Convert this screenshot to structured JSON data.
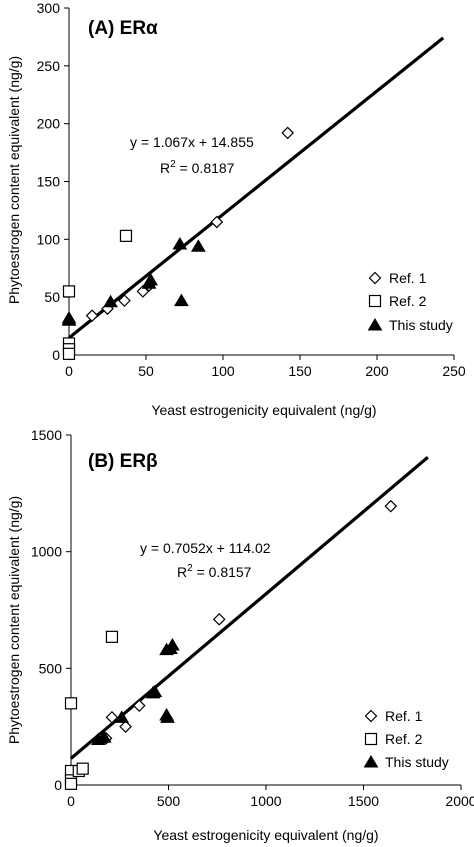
{
  "chart_data": [
    {
      "type": "scatter",
      "title": "(A) ERα",
      "xlabel": "Yeast estrogenicity equivalent (ng/g)",
      "ylabel": "Phytoestrogen content equivalent (ng/g)",
      "xlim": [
        0,
        250
      ],
      "ylim": [
        0,
        300
      ],
      "x_ticks": [
        0,
        50,
        100,
        150,
        200,
        250
      ],
      "y_ticks": [
        0,
        50,
        100,
        150,
        200,
        250,
        300
      ],
      "grid": false,
      "legend_position": "bottom-right",
      "equation": "y = 1.067x + 14.855",
      "r2_prefix": "R",
      "r2_suffix": " = 0.8187",
      "r2_superscript": "2",
      "fit": {
        "slope": 1.067,
        "intercept": 14.855,
        "x_range": [
          0,
          243
        ]
      },
      "series": [
        {
          "name": "Ref. 1",
          "marker": "diamond",
          "points": [
            [
              15,
              34
            ],
            [
              25,
              40
            ],
            [
              36,
              47
            ],
            [
              48,
              55
            ],
            [
              52,
              60
            ],
            [
              96,
              115
            ],
            [
              142,
              192
            ]
          ]
        },
        {
          "name": "Ref. 2",
          "marker": "square",
          "points": [
            [
              0,
              55
            ],
            [
              0,
              10
            ],
            [
              0,
              5
            ],
            [
              0,
              1
            ],
            [
              37,
              103
            ]
          ]
        },
        {
          "name": "This study",
          "marker": "triangle",
          "points": [
            [
              0,
              32
            ],
            [
              0,
              30
            ],
            [
              27,
              46
            ],
            [
              52,
              62
            ],
            [
              53,
              65
            ],
            [
              72,
              96
            ],
            [
              73,
              47
            ],
            [
              84,
              94
            ]
          ]
        }
      ]
    },
    {
      "type": "scatter",
      "title": "(B) ERβ",
      "xlabel": "Yeast estrogenicity equivalent (ng/g)",
      "ylabel": "Phytoestrogen content equivalent (ng/g)",
      "xlim": [
        0,
        2000
      ],
      "ylim": [
        0,
        1500
      ],
      "x_ticks": [
        0,
        500,
        1000,
        1500,
        2000
      ],
      "y_ticks": [
        0,
        500,
        1000,
        1500
      ],
      "grid": false,
      "legend_position": "bottom-right",
      "equation": "y = 0.7052x + 114.02",
      "r2_prefix": "R",
      "r2_suffix": " = 0.8157",
      "r2_superscript": "2",
      "fit": {
        "slope": 0.7052,
        "intercept": 114.02,
        "x_range": [
          0,
          1830
        ]
      },
      "series": [
        {
          "name": "Ref. 1",
          "marker": "diamond",
          "points": [
            [
              180,
              200
            ],
            [
              210,
              290
            ],
            [
              280,
              250
            ],
            [
              350,
              340
            ],
            [
              760,
              710
            ],
            [
              1640,
              1195
            ]
          ]
        },
        {
          "name": "Ref. 2",
          "marker": "square",
          "points": [
            [
              0,
              350
            ],
            [
              0,
              60
            ],
            [
              0,
              20
            ],
            [
              0,
              5
            ],
            [
              40,
              60
            ],
            [
              60,
              70
            ],
            [
              210,
              635
            ]
          ]
        },
        {
          "name": "This study",
          "marker": "triangle",
          "points": [
            [
              140,
              195
            ],
            [
              170,
              205
            ],
            [
              260,
              290
            ],
            [
              420,
              395
            ],
            [
              430,
              400
            ],
            [
              490,
              300
            ],
            [
              495,
              290
            ],
            [
              490,
              580
            ],
            [
              510,
              585
            ],
            [
              520,
              600
            ]
          ]
        }
      ]
    }
  ]
}
